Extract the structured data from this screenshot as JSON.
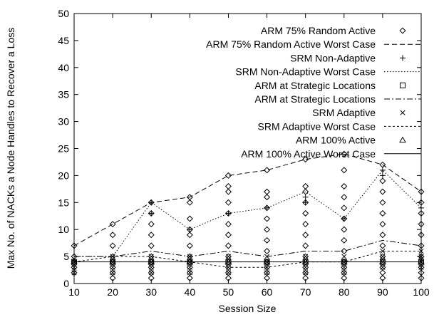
{
  "chart_data": {
    "type": "scatter",
    "xlabel": "Session Size",
    "ylabel": "Max No. of NACKs a Node Handles to Recover a Loss",
    "xlim": [
      10,
      100
    ],
    "ylim": [
      0,
      50
    ],
    "x_ticks": [
      "10",
      "20",
      "30",
      "40",
      "50",
      "60",
      "70",
      "80",
      "90",
      "100"
    ],
    "y_ticks": [
      "0",
      "5",
      "10",
      "15",
      "20",
      "25",
      "30",
      "35",
      "40",
      "45",
      "50"
    ],
    "grid": false,
    "legend_position": "top-right",
    "legend_labels": [
      "ARM 75% Random Active",
      "ARM 75% Random Active Worst Case",
      "SRM Non-Adaptive",
      "SRM Non-Adaptive Worst Case",
      "ARM at Strategic Locations",
      "ARM at Strategic Locations",
      "SRM Adaptive",
      "SRM Adaptive Worst Case",
      "ARM 100% Active",
      "ARM 100% Active Worst Case"
    ],
    "x": [
      10,
      20,
      30,
      40,
      50,
      60,
      70,
      80,
      90,
      100
    ],
    "series": [
      {
        "name": "ARM 75% Random Active",
        "kind": "points",
        "marker": "diamond",
        "points": [
          [
            10,
            7
          ],
          [
            10,
            5
          ],
          [
            10,
            4
          ],
          [
            10,
            3
          ],
          [
            10,
            2
          ],
          [
            20,
            11
          ],
          [
            20,
            9
          ],
          [
            20,
            7
          ],
          [
            20,
            5
          ],
          [
            20,
            4
          ],
          [
            20,
            3
          ],
          [
            20,
            2
          ],
          [
            20,
            1
          ],
          [
            30,
            15
          ],
          [
            30,
            13
          ],
          [
            30,
            11
          ],
          [
            30,
            9
          ],
          [
            30,
            7
          ],
          [
            30,
            5
          ],
          [
            30,
            4
          ],
          [
            30,
            3
          ],
          [
            30,
            2
          ],
          [
            30,
            1
          ],
          [
            40,
            16
          ],
          [
            40,
            15
          ],
          [
            40,
            12
          ],
          [
            40,
            10
          ],
          [
            40,
            9
          ],
          [
            40,
            7
          ],
          [
            40,
            5
          ],
          [
            40,
            4
          ],
          [
            40,
            3
          ],
          [
            40,
            2
          ],
          [
            40,
            1
          ],
          [
            50,
            20
          ],
          [
            50,
            18
          ],
          [
            50,
            17
          ],
          [
            50,
            15
          ],
          [
            50,
            13
          ],
          [
            50,
            11
          ],
          [
            50,
            9
          ],
          [
            50,
            7
          ],
          [
            50,
            5
          ],
          [
            50,
            3
          ],
          [
            50,
            2
          ],
          [
            50,
            1
          ],
          [
            60,
            21
          ],
          [
            60,
            17
          ],
          [
            60,
            16
          ],
          [
            60,
            14
          ],
          [
            60,
            12
          ],
          [
            60,
            10
          ],
          [
            60,
            8
          ],
          [
            60,
            6
          ],
          [
            60,
            4
          ],
          [
            60,
            3
          ],
          [
            60,
            2
          ],
          [
            60,
            1
          ],
          [
            70,
            23
          ],
          [
            70,
            18
          ],
          [
            70,
            17
          ],
          [
            70,
            15
          ],
          [
            70,
            13
          ],
          [
            70,
            11
          ],
          [
            70,
            9
          ],
          [
            70,
            7
          ],
          [
            70,
            5
          ],
          [
            70,
            3
          ],
          [
            70,
            2
          ],
          [
            70,
            1
          ],
          [
            80,
            24
          ],
          [
            80,
            21
          ],
          [
            80,
            18
          ],
          [
            80,
            16
          ],
          [
            80,
            14
          ],
          [
            80,
            12
          ],
          [
            80,
            10
          ],
          [
            80,
            8
          ],
          [
            80,
            6
          ],
          [
            80,
            4
          ],
          [
            80,
            3
          ],
          [
            80,
            2
          ],
          [
            80,
            1
          ],
          [
            90,
            22
          ],
          [
            90,
            19
          ],
          [
            90,
            17
          ],
          [
            90,
            15
          ],
          [
            90,
            13
          ],
          [
            90,
            11
          ],
          [
            90,
            9
          ],
          [
            90,
            7
          ],
          [
            90,
            5
          ],
          [
            90,
            3
          ],
          [
            90,
            2
          ],
          [
            90,
            1
          ],
          [
            100,
            17
          ],
          [
            100,
            15
          ],
          [
            100,
            13
          ],
          [
            100,
            11
          ],
          [
            100,
            9
          ],
          [
            100,
            7
          ],
          [
            100,
            5
          ],
          [
            100,
            3
          ],
          [
            100,
            2
          ],
          [
            100,
            1
          ]
        ]
      },
      {
        "name": "ARM 75% Random Active Worst Case",
        "kind": "line",
        "dash": "7,4",
        "values": [
          7,
          11,
          15,
          16,
          20,
          21,
          23,
          24,
          22,
          17
        ]
      },
      {
        "name": "SRM Non-Adaptive",
        "kind": "points",
        "marker": "plus",
        "points": [
          [
            30,
            15
          ],
          [
            30,
            13
          ],
          [
            40,
            10
          ],
          [
            50,
            13
          ],
          [
            60,
            14
          ],
          [
            70,
            16
          ],
          [
            70,
            15
          ],
          [
            80,
            12
          ],
          [
            90,
            21
          ],
          [
            90,
            20
          ],
          [
            100,
            14
          ]
        ]
      },
      {
        "name": "SRM Non-Adaptive Worst Case",
        "kind": "line",
        "dash": "1.5,2.5",
        "values": [
          5,
          5,
          15,
          10,
          13,
          14,
          17,
          12,
          21,
          14
        ]
      },
      {
        "name": "ARM at Strategic Locations",
        "kind": "points",
        "marker": "square",
        "points": [
          [
            10,
            4
          ],
          [
            20,
            4
          ],
          [
            30,
            4
          ],
          [
            40,
            4
          ],
          [
            50,
            4
          ],
          [
            60,
            4
          ],
          [
            70,
            4
          ],
          [
            80,
            4
          ],
          [
            90,
            4
          ],
          [
            100,
            4
          ]
        ]
      },
      {
        "name": "ARM at Strategic Locations",
        "kind": "line",
        "dash": "8,3,2,3",
        "values": [
          5,
          5,
          6,
          5,
          6,
          5,
          6,
          6,
          8,
          7
        ]
      },
      {
        "name": "SRM Adaptive",
        "kind": "points",
        "marker": "cross",
        "points": [
          [
            10,
            4
          ],
          [
            10,
            3
          ],
          [
            10,
            2
          ],
          [
            20,
            5
          ],
          [
            20,
            4
          ],
          [
            20,
            3
          ],
          [
            20,
            2
          ],
          [
            30,
            5
          ],
          [
            30,
            4
          ],
          [
            30,
            3
          ],
          [
            30,
            2
          ],
          [
            40,
            5
          ],
          [
            40,
            4
          ],
          [
            40,
            3
          ],
          [
            40,
            2
          ],
          [
            50,
            5
          ],
          [
            50,
            4
          ],
          [
            50,
            3
          ],
          [
            50,
            2
          ],
          [
            60,
            5
          ],
          [
            60,
            4
          ],
          [
            60,
            3
          ],
          [
            60,
            2
          ],
          [
            70,
            5
          ],
          [
            70,
            4
          ],
          [
            70,
            3
          ],
          [
            70,
            2
          ],
          [
            80,
            5
          ],
          [
            80,
            4
          ],
          [
            80,
            3
          ],
          [
            80,
            2
          ],
          [
            90,
            6
          ],
          [
            90,
            5
          ],
          [
            90,
            4
          ],
          [
            90,
            3
          ],
          [
            100,
            6
          ],
          [
            100,
            5
          ],
          [
            100,
            4
          ],
          [
            100,
            3
          ]
        ]
      },
      {
        "name": "SRM Adaptive Worst Case",
        "kind": "line",
        "dash": "3,3",
        "values": [
          4,
          5,
          5,
          4,
          3,
          3,
          4,
          4,
          6,
          6
        ]
      },
      {
        "name": "ARM 100% Active",
        "kind": "points",
        "marker": "triangle",
        "points": [
          [
            10,
            4
          ],
          [
            20,
            4
          ],
          [
            30,
            4
          ],
          [
            40,
            4
          ],
          [
            50,
            4
          ],
          [
            60,
            4
          ],
          [
            70,
            4
          ],
          [
            80,
            4
          ],
          [
            90,
            4
          ],
          [
            100,
            4
          ]
        ]
      },
      {
        "name": "ARM 100% Active Worst Case",
        "kind": "line",
        "dash": "",
        "values": [
          4,
          4,
          4,
          4,
          4,
          4,
          4,
          4,
          4,
          4
        ]
      }
    ]
  }
}
